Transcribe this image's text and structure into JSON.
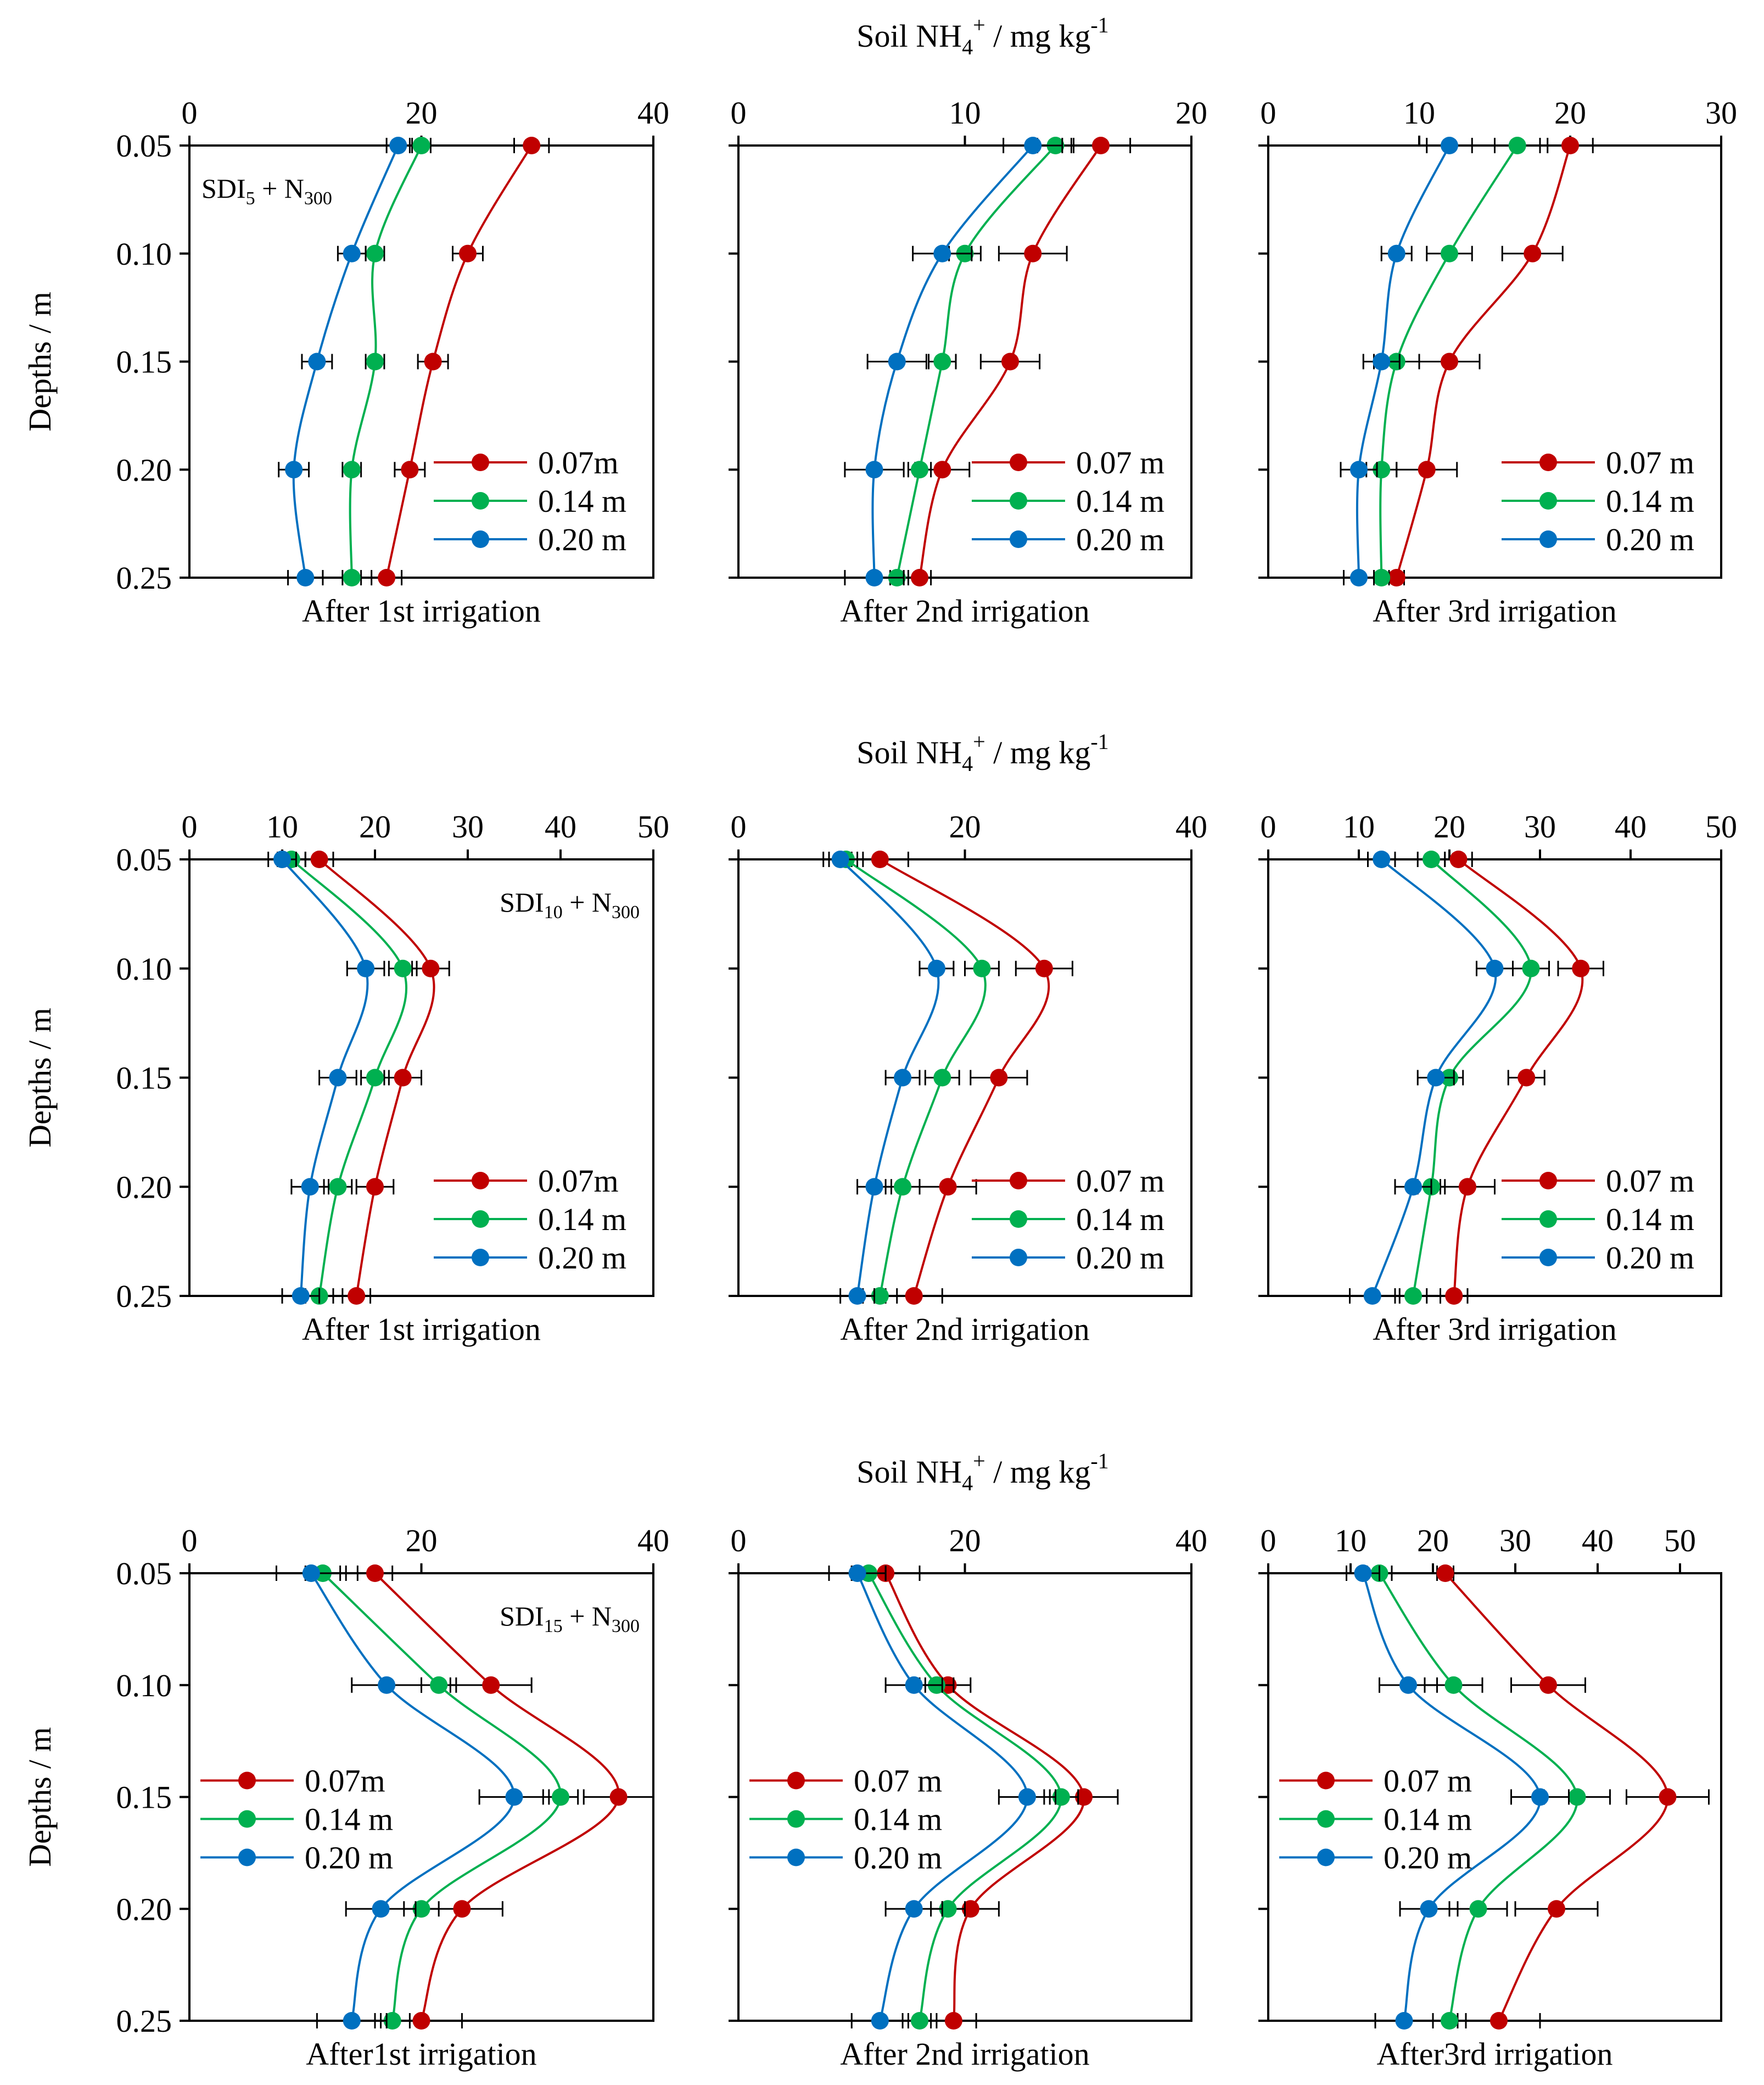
{
  "colors": {
    "red": "#c00000",
    "green": "#00b050",
    "blue": "#0070c0",
    "axis": "#000000"
  },
  "row_titles": [
    {
      "main": "Soil NH",
      "sub": "4",
      "sup": "+",
      "rest": " / mg kg",
      "sup2": "-1"
    },
    {
      "main": "Soil NH",
      "sub": "4",
      "sup": "+",
      "rest": " / mg kg",
      "sup2": "-1"
    },
    {
      "main": "Soil NH",
      "sub": "4",
      "sup": "+",
      "rest": " / mg kg",
      "sup2": "-1"
    }
  ],
  "ylabel": "Depths / m",
  "depth_ticks": [
    "0.05",
    "0.10",
    "0.15",
    "0.20",
    "0.25"
  ],
  "chart_data": [
    {
      "type": "line",
      "row": 0,
      "col": 0,
      "xlim": [
        0,
        40
      ],
      "xticks": [
        0,
        20,
        40
      ],
      "xlabel": "After 1st irrigation",
      "annotation": {
        "main": "SDI",
        "sub": "5",
        "mid": " + N",
        "sub2": "300"
      },
      "legend": {
        "labels": [
          "0.07m",
          "0.14 m",
          "0.20 m"
        ],
        "position": "bottom-right"
      },
      "depths": [
        0.05,
        0.1,
        0.15,
        0.2,
        0.25
      ],
      "series": [
        {
          "name": "0.07m",
          "color": "red",
          "values": [
            29.5,
            24.0,
            21.0,
            19.0,
            17.0
          ],
          "err": [
            1.5,
            1.3,
            1.3,
            1.3,
            1.3
          ]
        },
        {
          "name": "0.14 m",
          "color": "green",
          "values": [
            20.0,
            16.0,
            16.0,
            14.0,
            14.0
          ],
          "err": [
            0.8,
            0.8,
            0.8,
            0.8,
            0.8
          ]
        },
        {
          "name": "0.20 m",
          "color": "blue",
          "values": [
            18.0,
            14.0,
            11.0,
            9.0,
            10.0
          ],
          "err": [
            1.0,
            1.2,
            1.3,
            1.3,
            1.5
          ]
        }
      ]
    },
    {
      "type": "line",
      "row": 0,
      "col": 1,
      "xlim": [
        0,
        20
      ],
      "xticks": [
        0,
        10,
        20
      ],
      "xlabel": "After 2nd irrigation",
      "legend": {
        "labels": [
          "0.07 m",
          "0.14 m",
          "0.20 m"
        ],
        "position": "bottom-right"
      },
      "depths": [
        0.05,
        0.1,
        0.15,
        0.2,
        0.25
      ],
      "series": [
        {
          "name": "0.07 m",
          "color": "red",
          "values": [
            16.0,
            13.0,
            12.0,
            9.0,
            8.0
          ],
          "err": [
            1.3,
            1.5,
            1.3,
            1.2,
            0.5
          ]
        },
        {
          "name": "0.14 m",
          "color": "green",
          "values": [
            14.0,
            10.0,
            9.0,
            8.0,
            7.0
          ],
          "err": [
            0.8,
            0.7,
            0.6,
            0.5,
            0.3
          ]
        },
        {
          "name": "0.20 m",
          "color": "blue",
          "values": [
            13.0,
            9.0,
            7.0,
            6.0,
            6.0
          ],
          "err": [
            1.3,
            1.3,
            1.3,
            1.3,
            1.3
          ]
        }
      ]
    },
    {
      "type": "line",
      "row": 0,
      "col": 2,
      "xlim": [
        0,
        30
      ],
      "xticks": [
        0,
        10,
        20,
        30
      ],
      "xlabel": "After 3rd irrigation",
      "legend": {
        "labels": [
          "0.07 m",
          "0.14 m",
          "0.20 m"
        ],
        "position": "bottom-right"
      },
      "depths": [
        0.05,
        0.1,
        0.15,
        0.2,
        0.25
      ],
      "series": [
        {
          "name": "0.07 m",
          "color": "red",
          "values": [
            20.0,
            17.5,
            12.0,
            10.5,
            8.5
          ],
          "err": [
            1.5,
            2.0,
            2.0,
            2.0,
            0.5
          ]
        },
        {
          "name": "0.14 m",
          "color": "green",
          "values": [
            16.5,
            12.0,
            8.5,
            7.5,
            7.5
          ],
          "err": [
            1.5,
            1.5,
            1.5,
            1.0,
            0.5
          ]
        },
        {
          "name": "0.20 m",
          "color": "blue",
          "values": [
            12.0,
            8.5,
            7.5,
            6.0,
            6.0
          ],
          "err": [
            1.5,
            1.0,
            1.2,
            1.2,
            1.0
          ]
        }
      ]
    },
    {
      "type": "line",
      "row": 1,
      "col": 0,
      "xlim": [
        0,
        50
      ],
      "xticks": [
        0,
        10,
        20,
        30,
        40,
        50
      ],
      "xlabel": "After 1st irrigation",
      "annotation": {
        "main": "SDI",
        "sub": "10",
        "mid": " + N",
        "sub2": "300"
      },
      "legend": {
        "labels": [
          "0.07m",
          "0.14 m",
          "0.20 m"
        ],
        "position": "bottom-right"
      },
      "depths": [
        0.05,
        0.1,
        0.15,
        0.2,
        0.25
      ],
      "series": [
        {
          "name": "0.07m",
          "color": "red",
          "values": [
            14.0,
            26.0,
            23.0,
            20.0,
            18.0
          ],
          "err": [
            1.5,
            2.0,
            2.0,
            2.0,
            1.5
          ]
        },
        {
          "name": "0.14 m",
          "color": "green",
          "values": [
            11.0,
            23.0,
            20.0,
            16.0,
            14.0
          ],
          "err": [
            1.5,
            1.5,
            1.5,
            1.5,
            1.5
          ]
        },
        {
          "name": "0.20 m",
          "color": "blue",
          "values": [
            10.0,
            19.0,
            16.0,
            13.0,
            12.0
          ],
          "err": [
            1.5,
            2.0,
            2.0,
            2.0,
            2.0
          ]
        }
      ]
    },
    {
      "type": "line",
      "row": 1,
      "col": 1,
      "xlim": [
        0,
        40
      ],
      "xticks": [
        0,
        20,
        40
      ],
      "xlabel": "After 2nd irrigation",
      "legend": {
        "labels": [
          "0.07 m",
          "0.14 m",
          "0.20 m"
        ],
        "position": "bottom-right"
      },
      "depths": [
        0.05,
        0.1,
        0.15,
        0.2,
        0.25
      ],
      "series": [
        {
          "name": "0.07 m",
          "color": "red",
          "values": [
            12.5,
            27.0,
            23.0,
            18.5,
            15.5
          ],
          "err": [
            2.5,
            2.5,
            2.5,
            2.5,
            2.5
          ]
        },
        {
          "name": "0.14 m",
          "color": "green",
          "values": [
            9.5,
            21.5,
            18.0,
            14.5,
            12.5
          ],
          "err": [
            1.5,
            1.5,
            1.5,
            1.5,
            1.5
          ]
        },
        {
          "name": "0.20 m",
          "color": "blue",
          "values": [
            9.0,
            17.5,
            14.5,
            12.0,
            10.5
          ],
          "err": [
            1.5,
            1.5,
            1.5,
            1.5,
            1.5
          ]
        }
      ]
    },
    {
      "type": "line",
      "row": 1,
      "col": 2,
      "xlim": [
        0,
        50
      ],
      "xticks": [
        0,
        10,
        20,
        30,
        40,
        50
      ],
      "xlabel": "After 3rd irrigation",
      "legend": {
        "labels": [
          "0.07 m",
          "0.14 m",
          "0.20 m"
        ],
        "position": "bottom-right"
      },
      "depths": [
        0.05,
        0.1,
        0.15,
        0.2,
        0.25
      ],
      "series": [
        {
          "name": "0.07 m",
          "color": "red",
          "values": [
            21.0,
            34.5,
            28.5,
            22.0,
            20.5
          ],
          "err": [
            1.5,
            2.5,
            2.0,
            3.0,
            1.5
          ]
        },
        {
          "name": "0.14 m",
          "color": "green",
          "values": [
            18.0,
            29.0,
            20.0,
            18.0,
            16.0
          ],
          "err": [
            1.5,
            2.0,
            1.5,
            1.5,
            1.5
          ]
        },
        {
          "name": "0.20 m",
          "color": "blue",
          "values": [
            12.5,
            25.0,
            18.5,
            16.0,
            11.5
          ],
          "err": [
            1.5,
            2.0,
            2.0,
            2.0,
            2.5
          ]
        }
      ]
    },
    {
      "type": "line",
      "row": 2,
      "col": 0,
      "xlim": [
        0,
        40
      ],
      "xticks": [
        0,
        20,
        40
      ],
      "xlabel": "After1st irrigation",
      "annotation": {
        "main": "SDI",
        "sub": "15",
        "mid": " + N",
        "sub2": "300"
      },
      "legend": {
        "labels": [
          "0.07m",
          "0.14 m",
          "0.20 m"
        ],
        "position": "center-left"
      },
      "depths": [
        0.05,
        0.1,
        0.15,
        0.2,
        0.25
      ],
      "series": [
        {
          "name": "0.07m",
          "color": "red",
          "values": [
            16.0,
            26.0,
            37.0,
            23.5,
            20.0
          ],
          "err": [
            1.5,
            3.5,
            3.0,
            3.5,
            3.5
          ]
        },
        {
          "name": "0.14 m",
          "color": "green",
          "values": [
            11.5,
            21.5,
            32.0,
            20.0,
            17.5
          ],
          "err": [
            1.5,
            1.5,
            1.5,
            1.5,
            1.5
          ]
        },
        {
          "name": "0.20 m",
          "color": "blue",
          "values": [
            10.5,
            17.0,
            28.0,
            16.5,
            14.0
          ],
          "err": [
            3.0,
            3.0,
            3.0,
            3.0,
            3.0
          ]
        }
      ]
    },
    {
      "type": "line",
      "row": 2,
      "col": 1,
      "xlim": [
        0,
        40
      ],
      "xticks": [
        0,
        20,
        40
      ],
      "xlabel": "After 2nd irrigation",
      "legend": {
        "labels": [
          "0.07 m",
          "0.14 m",
          "0.20 m"
        ],
        "position": "center-left"
      },
      "depths": [
        0.05,
        0.1,
        0.15,
        0.2,
        0.25
      ],
      "series": [
        {
          "name": "0.07 m",
          "color": "red",
          "values": [
            13.0,
            18.5,
            30.5,
            20.5,
            19.0
          ],
          "err": [
            3.0,
            2.0,
            3.0,
            2.5,
            2.0
          ]
        },
        {
          "name": "0.14 m",
          "color": "green",
          "values": [
            11.5,
            17.5,
            28.5,
            18.5,
            16.0
          ],
          "err": [
            1.5,
            1.5,
            1.5,
            1.5,
            1.5
          ]
        },
        {
          "name": "0.20 m",
          "color": "blue",
          "values": [
            10.5,
            15.5,
            25.5,
            15.5,
            12.5
          ],
          "err": [
            2.5,
            2.5,
            2.5,
            2.5,
            2.5
          ]
        }
      ]
    },
    {
      "type": "line",
      "row": 2,
      "col": 2,
      "xlim": [
        0,
        55
      ],
      "xticks": [
        0,
        10,
        20,
        30,
        40,
        50
      ],
      "xlabel": "After3rd irrigation",
      "legend": {
        "labels": [
          "0.07 m",
          "0.14 m",
          "0.20 m"
        ],
        "position": "center-left"
      },
      "depths": [
        0.05,
        0.1,
        0.15,
        0.2,
        0.25
      ],
      "series": [
        {
          "name": "0.07 m",
          "color": "red",
          "values": [
            21.5,
            34.0,
            48.5,
            35.0,
            28.0
          ],
          "err": [
            1.0,
            4.5,
            5.0,
            5.0,
            5.0
          ]
        },
        {
          "name": "0.14 m",
          "color": "green",
          "values": [
            13.5,
            22.5,
            37.5,
            25.5,
            22.0
          ],
          "err": [
            1.5,
            3.5,
            4.0,
            3.5,
            2.0
          ]
        },
        {
          "name": "0.20 m",
          "color": "blue",
          "values": [
            11.5,
            17.0,
            33.0,
            19.5,
            16.5
          ],
          "err": [
            2.0,
            3.5,
            3.5,
            3.5,
            3.5
          ]
        }
      ]
    }
  ]
}
